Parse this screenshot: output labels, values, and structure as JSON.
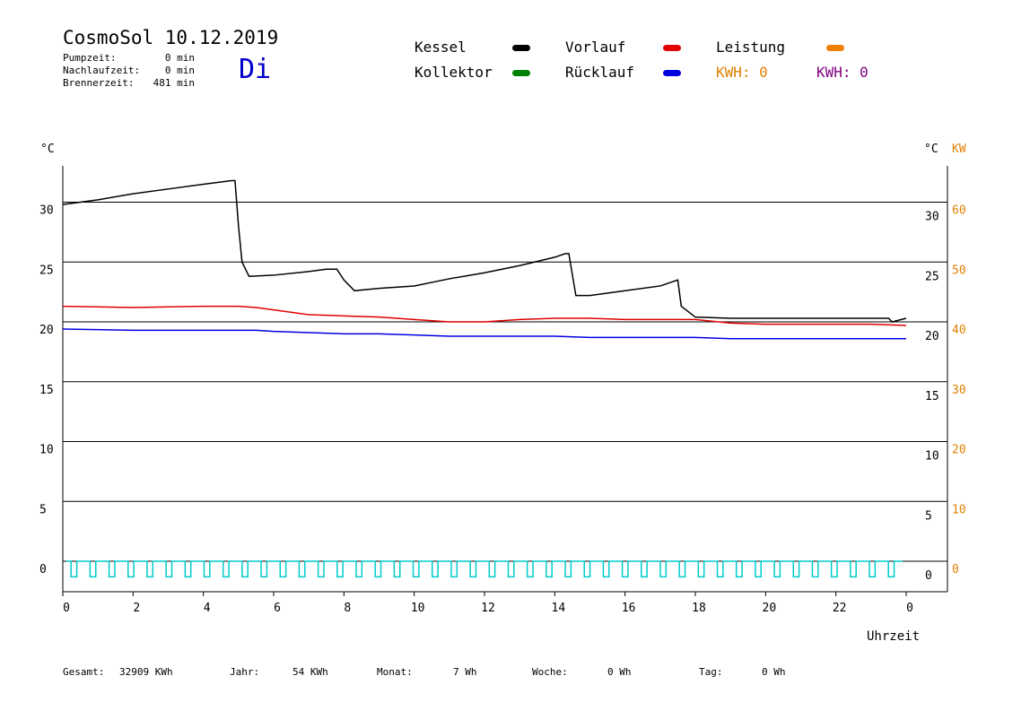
{
  "header": {
    "title": "CosmoSol 10.12.2019",
    "day": "Di",
    "stats": [
      {
        "label": "Pumpzeit:",
        "value": "0 min"
      },
      {
        "label": "Nachlaufzeit:",
        "value": "0 min"
      },
      {
        "label": "Brennerzeit:",
        "value": "481 min"
      }
    ]
  },
  "legend": {
    "kessel": {
      "label": "Kessel",
      "color": "#000000"
    },
    "vorlauf": {
      "label": "Vorlauf",
      "color": "#e00000"
    },
    "leistung": {
      "label": "Leistung",
      "color": "#f08000"
    },
    "kollektor": {
      "label": "Kollektor",
      "color": "#008000"
    },
    "ruecklauf": {
      "label": "Rücklauf",
      "color": "#0000e0"
    },
    "kwh1": {
      "label": "KWH: 0",
      "color": "#e08000"
    },
    "kwh2": {
      "label": "KWH: 0",
      "color": "#800080"
    }
  },
  "footer": [
    {
      "label": "Gesamt:",
      "value": "32909 KWh"
    },
    {
      "label": "Jahr:",
      "value": "54 KWh"
    },
    {
      "label": "Monat:",
      "value": "7 Wh"
    },
    {
      "label": "Woche:",
      "value": "0 Wh"
    },
    {
      "label": "Tag:",
      "value": "0 Wh"
    }
  ],
  "chart_data": {
    "type": "line",
    "xlabel": "Uhrzeit",
    "ylabel_left": "°C",
    "ylabel_right": "°C",
    "ylabel_right2": "KW",
    "x_ticks": [
      "0",
      "2",
      "4",
      "6",
      "8",
      "10",
      "12",
      "14",
      "16",
      "18",
      "20",
      "22",
      "0"
    ],
    "xlim": [
      0,
      24
    ],
    "ylim": [
      -2.5,
      35
    ],
    "y_ticks": [
      0,
      5,
      10,
      15,
      20,
      25,
      30
    ],
    "y2_ticks": [
      0,
      10,
      20,
      30,
      40,
      50,
      60
    ],
    "grid": "horizontal",
    "series": [
      {
        "name": "Kessel",
        "color": "#000000",
        "x": [
          0,
          1,
          2,
          3,
          4,
          4.8,
          4.9,
          5,
          5.1,
          5.3,
          6,
          7,
          7.5,
          7.8,
          8,
          8.3,
          9,
          10,
          11,
          12,
          13,
          14,
          14.3,
          14.4,
          14.6,
          15,
          16,
          17,
          17.3,
          17.5,
          17.6,
          18,
          19,
          20,
          21,
          22,
          23.5,
          23.6,
          24
        ],
        "y": [
          29.8,
          30.2,
          30.7,
          31.1,
          31.5,
          31.8,
          31.8,
          28,
          25,
          23.8,
          23.9,
          24.2,
          24.4,
          24.4,
          23.5,
          22.6,
          22.8,
          23.0,
          23.6,
          24.1,
          24.7,
          25.4,
          25.7,
          25.7,
          22.2,
          22.2,
          22.6,
          23.0,
          23.3,
          23.5,
          21.3,
          20.4,
          20.3,
          20.3,
          20.3,
          20.3,
          20.3,
          20.0,
          20.3
        ]
      },
      {
        "name": "Vorlauf",
        "color": "#e00000",
        "x": [
          0,
          2,
          4,
          5,
          5.5,
          6,
          7,
          8,
          9,
          10,
          11,
          12,
          13,
          14,
          15,
          16,
          17,
          18,
          19,
          20,
          21,
          22,
          23,
          24
        ],
        "y": [
          21.3,
          21.2,
          21.3,
          21.3,
          21.2,
          21.0,
          20.6,
          20.5,
          20.4,
          20.2,
          20.0,
          20.0,
          20.2,
          20.3,
          20.3,
          20.2,
          20.2,
          20.2,
          19.9,
          19.8,
          19.8,
          19.8,
          19.8,
          19.7
        ]
      },
      {
        "name": "Rücklauf",
        "color": "#0000e0",
        "x": [
          0,
          2,
          4,
          5,
          5.5,
          6,
          7,
          8,
          9,
          10,
          11,
          12,
          13,
          14,
          15,
          16,
          17,
          18,
          19,
          20,
          21,
          22,
          23,
          24
        ],
        "y": [
          19.4,
          19.3,
          19.3,
          19.3,
          19.3,
          19.2,
          19.1,
          19.0,
          19.0,
          18.9,
          18.8,
          18.8,
          18.8,
          18.8,
          18.7,
          18.7,
          18.7,
          18.7,
          18.6,
          18.6,
          18.6,
          18.6,
          18.6,
          18.6
        ]
      }
    ],
    "pulse_series": {
      "color": "#00cccc",
      "x_start": 0.1,
      "x_end": 23.9,
      "count": 44,
      "low": -1.3,
      "high": 0
    }
  }
}
